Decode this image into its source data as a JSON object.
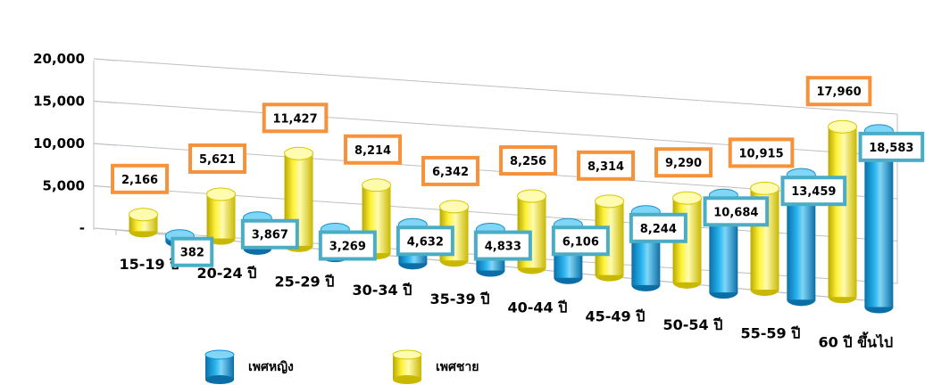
{
  "chart_data": {
    "type": "bar",
    "style": "3d-cylinder",
    "categories": [
      "15-19 ปี",
      "20-24 ปี",
      "25-29 ปี",
      "30-34 ปี",
      "35-39 ปี",
      "40-44 ปี",
      "45-49 ปี",
      "50-54 ปี",
      "55-59 ปี",
      "60 ปี ขึ้นไป"
    ],
    "series": [
      {
        "name": "เพศชาย",
        "color": "#FFF200",
        "label_border": "#F7923A",
        "values": [
          2166,
          5621,
          11427,
          8214,
          6342,
          8256,
          8314,
          9290,
          10915,
          17960
        ],
        "labels": [
          "2,166",
          "5,621",
          "11,427",
          "8,214",
          "6,342",
          "8,256",
          "8,314",
          "9,290",
          "10,915",
          "17,960"
        ]
      },
      {
        "name": "เพศหญิง",
        "color": "#1BA1E2",
        "label_border": "#4BACC6",
        "values": [
          382,
          3867,
          3269,
          4632,
          4833,
          6106,
          8244,
          10684,
          13459,
          18583
        ],
        "labels": [
          "382",
          "3,867",
          "3,269",
          "4,632",
          "4,833",
          "6,106",
          "8,244",
          "10,684",
          "13,459",
          "18,583"
        ]
      }
    ],
    "yticks": [
      "-",
      "5,000",
      "10,000",
      "15,000",
      "20,000"
    ],
    "ylim": [
      0,
      20000
    ],
    "grid": true,
    "legend_position": "bottom-left",
    "title": "",
    "xlabel": "",
    "ylabel": ""
  }
}
